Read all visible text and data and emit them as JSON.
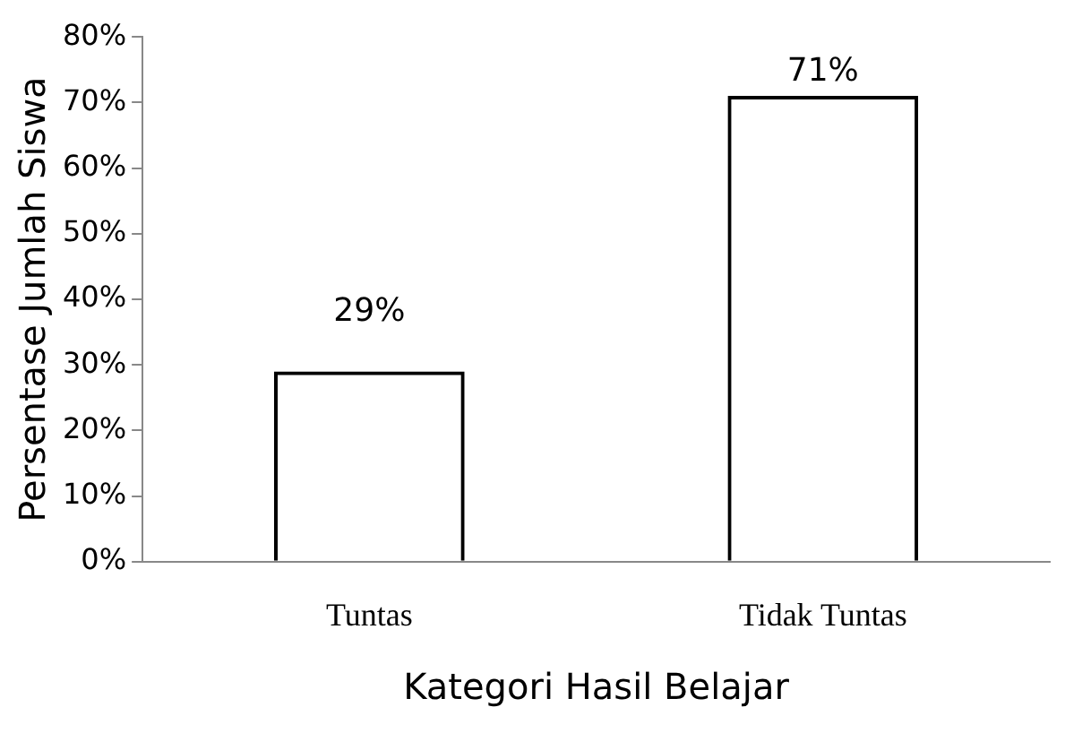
{
  "chart_data": {
    "type": "bar",
    "xlabel": "Kategori Hasil Belajar",
    "ylabel": "Persentase Jumlah Siswa",
    "categories": [
      "Tuntas",
      "Tidak Tuntas"
    ],
    "values": [
      29,
      71
    ],
    "color": "#000000",
    "value_labels": [
      "29%",
      "71%"
    ],
    "ylim": [
      0,
      80
    ],
    "yticks": [
      {
        "value": 0,
        "label": "0%"
      },
      {
        "value": 10,
        "label": "10%"
      },
      {
        "value": 20,
        "label": "20%"
      },
      {
        "value": 30,
        "label": "30%"
      },
      {
        "value": 40,
        "label": "40%"
      },
      {
        "value": 50,
        "label": "50%"
      },
      {
        "value": 60,
        "label": "60%"
      },
      {
        "value": 70,
        "label": "70%"
      },
      {
        "value": 80,
        "label": "80%"
      }
    ],
    "grid": false,
    "legend": false
  }
}
